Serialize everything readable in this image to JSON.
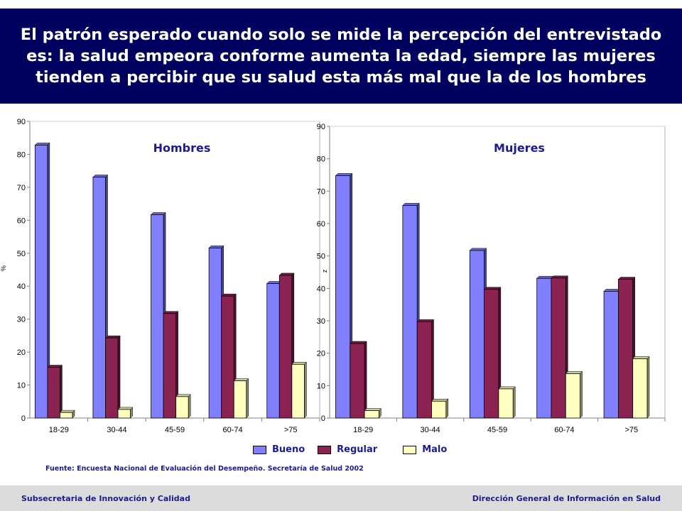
{
  "header": {
    "title": "El patrón esperado cuando solo se mide la percepción del entrevistado es:  la salud empeora conforme aumenta la edad, siempre las mujeres tienden a percibir que su salud esta más mal que la de los hombres"
  },
  "chart_data": [
    {
      "type": "bar",
      "title": "Hombres",
      "ylabel": "%",
      "categories": [
        "18-29",
        "30-44",
        "45-59",
        "60-74",
        ">75"
      ],
      "series": [
        {
          "name": "Bueno",
          "values": [
            82.8,
            73.1,
            61.7,
            51.6,
            40.8
          ]
        },
        {
          "name": "Regular",
          "values": [
            15.4,
            24.3,
            31.7,
            37.0,
            43.3
          ]
        },
        {
          "name": "Malo",
          "values": [
            1.7,
            2.6,
            6.5,
            11.3,
            16.3
          ]
        }
      ],
      "ylim": [
        0,
        90
      ],
      "yticks": [
        "0",
        "10",
        "20",
        "30",
        "40",
        "50",
        "60",
        "70",
        "80",
        "90"
      ],
      "grid": false
    },
    {
      "type": "bar",
      "title": "Mujeres",
      "ylabel": "z",
      "categories": [
        "18-29",
        "30-44",
        "45-59",
        "60-74",
        ">75"
      ],
      "series": [
        {
          "name": "Bueno",
          "values": [
            74.8,
            65.6,
            51.7,
            43.1,
            39.1
          ]
        },
        {
          "name": "Regular",
          "values": [
            23.0,
            29.7,
            39.7,
            43.2,
            42.8
          ]
        },
        {
          "name": "Malo",
          "values": [
            2.3,
            5.2,
            9.0,
            13.7,
            18.3
          ]
        }
      ],
      "ylim": [
        0,
        90
      ],
      "yticks": [
        "0",
        "10",
        "20",
        "30",
        "40",
        "50",
        "60",
        "70",
        "80",
        "90"
      ],
      "grid": false
    }
  ],
  "legend": {
    "items": [
      {
        "label": "Bueno",
        "color": "#8080ff"
      },
      {
        "label": "Regular",
        "color": "#8a2252"
      },
      {
        "label": "Malo",
        "color": "#ffffc0"
      }
    ],
    "placement": "bottom"
  },
  "source": {
    "text": "Fuente: Encuesta Nacional de Evaluación del Desempeño. Secretaría de Salud 2002"
  },
  "footer": {
    "left": "Subsecretaria de Innovación y Calidad",
    "right": "Dirección General de Información en Salud"
  },
  "colors": {
    "title_bg": "#00005e",
    "title_text": "#ffffff",
    "label_text": "#1c1c8a",
    "footer_bg": "#dcdcdc"
  }
}
